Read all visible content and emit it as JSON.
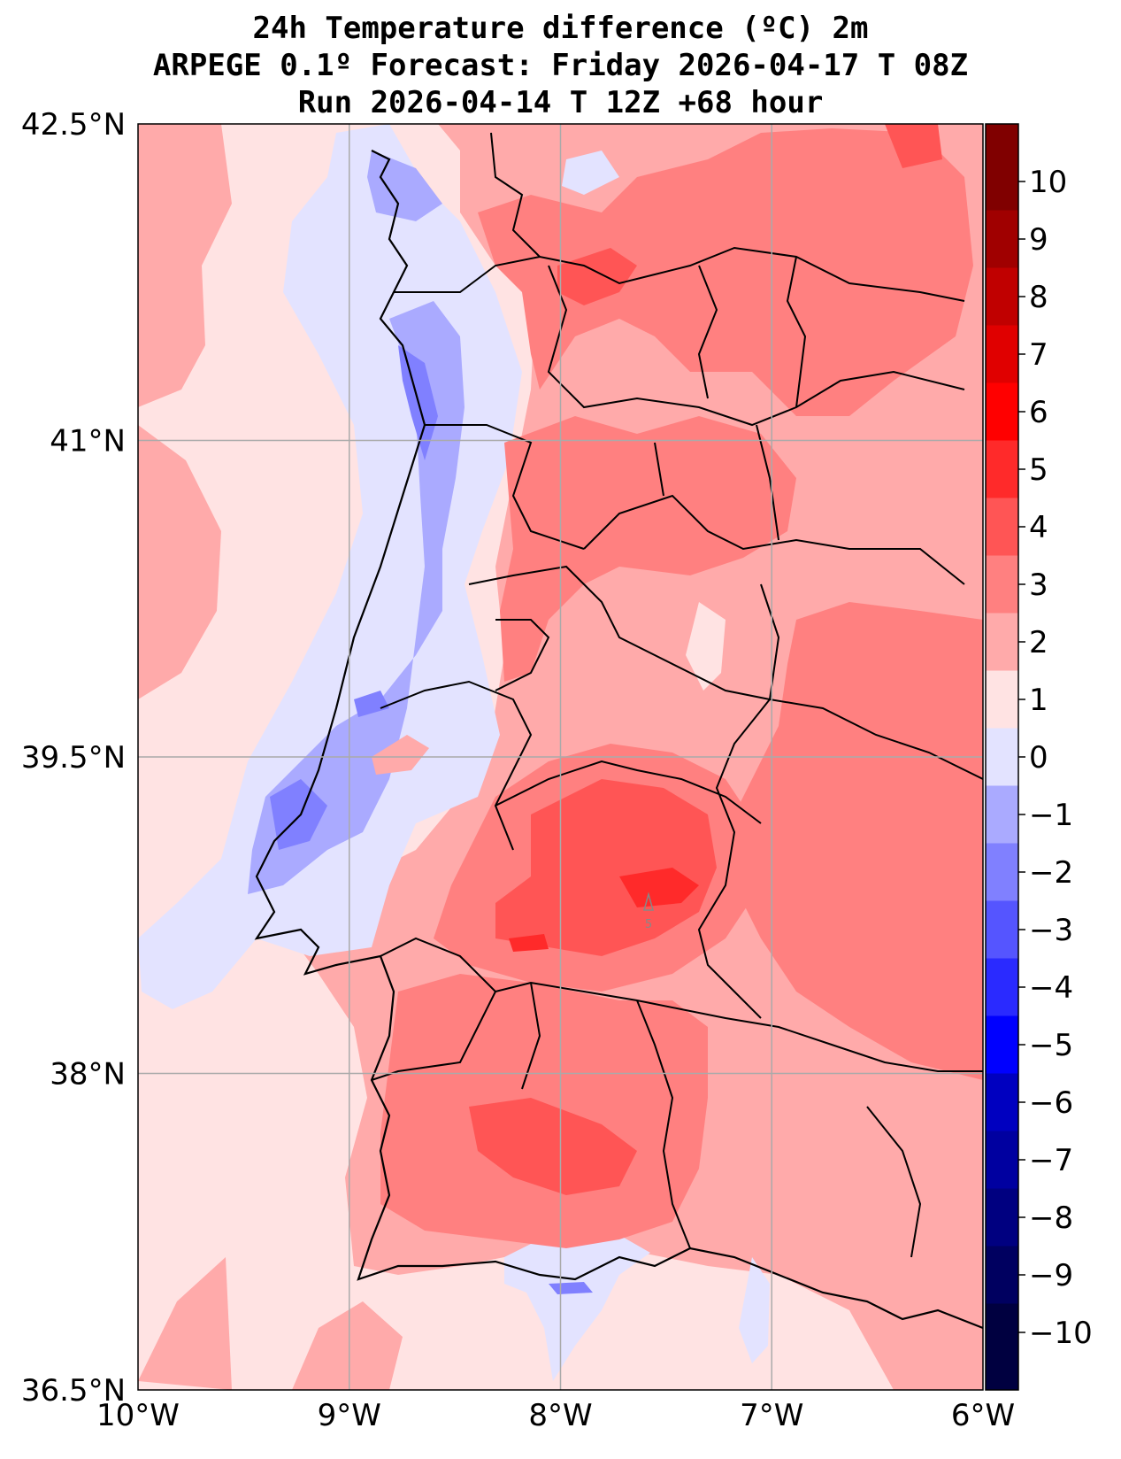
{
  "title": {
    "line1": "24h Temperature difference (ºC) 2m",
    "line2": "ARPEGE 0.1º Forecast: Friday 2026-04-17 T 08Z",
    "line3": "Run 2026-04-14 T 12Z +68 hour"
  },
  "axes": {
    "lat_labels": [
      "42.5°N",
      "41°N",
      "39.5°N",
      "38°N",
      "36.5°N"
    ],
    "lon_labels": [
      "10°W",
      "9°W",
      "8°W",
      "7°W",
      "6°W"
    ],
    "lat_range": [
      36.5,
      42.5
    ],
    "lon_range": [
      -10,
      -6
    ]
  },
  "colorbar": {
    "ticks": [
      "10",
      "9",
      "8",
      "7",
      "6",
      "5",
      "4",
      "3",
      "2",
      "1",
      "0",
      "−1",
      "−2",
      "−3",
      "−4",
      "−5",
      "−6",
      "−7",
      "−8",
      "−9",
      "−10"
    ],
    "colors": [
      "#800000",
      "#a00000",
      "#c00000",
      "#e00000",
      "#ff0000",
      "#ff2a2a",
      "#ff5555",
      "#ff8080",
      "#ffaaaa",
      "#ffe3e3",
      "#e3e3ff",
      "#aaaaff",
      "#8080ff",
      "#5555ff",
      "#2a2aff",
      "#0000ff",
      "#0000c0",
      "#0000a0",
      "#000080",
      "#000060",
      "#000040"
    ]
  },
  "map_annotation": "5",
  "colors": {
    "land_warm": "#ffaaaa",
    "sea_neutral": "#ffe3e3",
    "cold_coast": "#aaaaff",
    "hot_core": "#ff5555"
  }
}
